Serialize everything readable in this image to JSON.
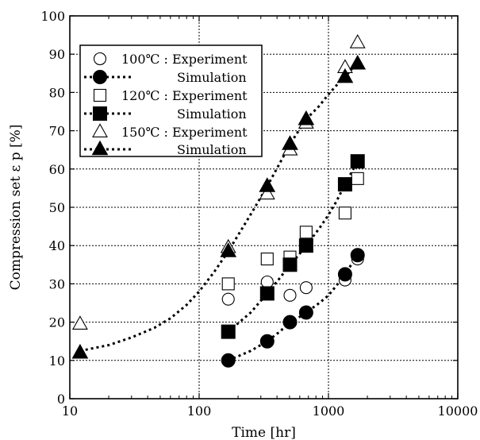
{
  "chart_data": {
    "type": "scatter",
    "title": "",
    "xlabel": "Time [hr]",
    "ylabel": "Compression set  ε p [%]",
    "xscale": "log",
    "xlim": [
      10,
      10000
    ],
    "ylim": [
      0,
      100
    ],
    "xticks": [
      {
        "value": 10,
        "label": "10"
      },
      {
        "value": 100,
        "label": "100"
      },
      {
        "value": 1000,
        "label": "1000"
      },
      {
        "value": 10000,
        "label": "10000"
      }
    ],
    "yticks": [
      {
        "value": 0,
        "label": "0"
      },
      {
        "value": 10,
        "label": "10"
      },
      {
        "value": 20,
        "label": "20"
      },
      {
        "value": 30,
        "label": "30"
      },
      {
        "value": 40,
        "label": "40"
      },
      {
        "value": 50,
        "label": "50"
      },
      {
        "value": 60,
        "label": "60"
      },
      {
        "value": 70,
        "label": "70"
      },
      {
        "value": 80,
        "label": "80"
      },
      {
        "value": 90,
        "label": "90"
      },
      {
        "value": 100,
        "label": "100"
      }
    ],
    "grid": true,
    "legend_position": "top-left",
    "series": [
      {
        "name": "100℃ : Experiment",
        "kind": "experiment",
        "marker": "circle-open",
        "x": [
          168,
          336,
          504,
          672,
          1344,
          1680
        ],
        "y": [
          26,
          30.5,
          27,
          29,
          31,
          36.5
        ]
      },
      {
        "name": "Simulation",
        "kind": "simulation",
        "marker": "circle-filled",
        "x": [
          168,
          336,
          504,
          672,
          1344,
          1680
        ],
        "y": [
          10,
          15,
          20,
          22.5,
          32.5,
          37.5
        ],
        "curve_x": [
          168,
          250,
          336,
          420,
          504,
          588,
          672,
          850,
          1000,
          1150,
          1344,
          1500,
          1680
        ],
        "curve_y": [
          10,
          12.5,
          15,
          17.5,
          20,
          21.2,
          22.5,
          25,
          27,
          29.5,
          32.5,
          35,
          37.5
        ]
      },
      {
        "name": "120℃ : Experiment",
        "kind": "experiment",
        "marker": "square-open",
        "x": [
          168,
          336,
          504,
          672,
          1344,
          1680
        ],
        "y": [
          30,
          36.5,
          37,
          43.5,
          48.5,
          57.5
        ]
      },
      {
        "name": "Simulation",
        "kind": "simulation",
        "marker": "square-filled",
        "x": [
          168,
          336,
          504,
          672,
          1344,
          1680
        ],
        "y": [
          17.5,
          27.5,
          35,
          40,
          56,
          62
        ],
        "curve_x": [
          168,
          250,
          336,
          420,
          504,
          588,
          672,
          850,
          1000,
          1150,
          1344,
          1500,
          1680
        ],
        "curve_y": [
          17.5,
          22.5,
          27.5,
          31.5,
          35,
          37.5,
          40,
          44.5,
          48,
          51.5,
          56,
          59,
          62
        ]
      },
      {
        "name": "150℃ : Experiment",
        "kind": "experiment",
        "marker": "triangle-open",
        "x": [
          12,
          168,
          336,
          504,
          672,
          1344,
          1680
        ],
        "y": [
          19.5,
          39.5,
          53.5,
          65,
          72,
          86.5,
          93
        ]
      },
      {
        "name": "Simulation",
        "kind": "simulation",
        "marker": "triangle-filled",
        "x": [
          12,
          168,
          336,
          504,
          672,
          1344,
          1680
        ],
        "y": [
          12,
          38.5,
          55.5,
          66.5,
          73,
          84,
          87.5
        ],
        "curve_x": [
          12,
          20,
          30,
          45,
          60,
          80,
          100,
          130,
          168,
          220,
          270,
          336,
          420,
          504,
          588,
          672,
          850,
          1000,
          1200,
          1344,
          1500,
          1680
        ],
        "curve_y": [
          12.5,
          14,
          16,
          18.5,
          21,
          24.5,
          28,
          33,
          38.5,
          45,
          50,
          55.5,
          61.5,
          66.5,
          70,
          73,
          76.5,
          79.5,
          82.5,
          84,
          86,
          87.5
        ]
      }
    ]
  }
}
